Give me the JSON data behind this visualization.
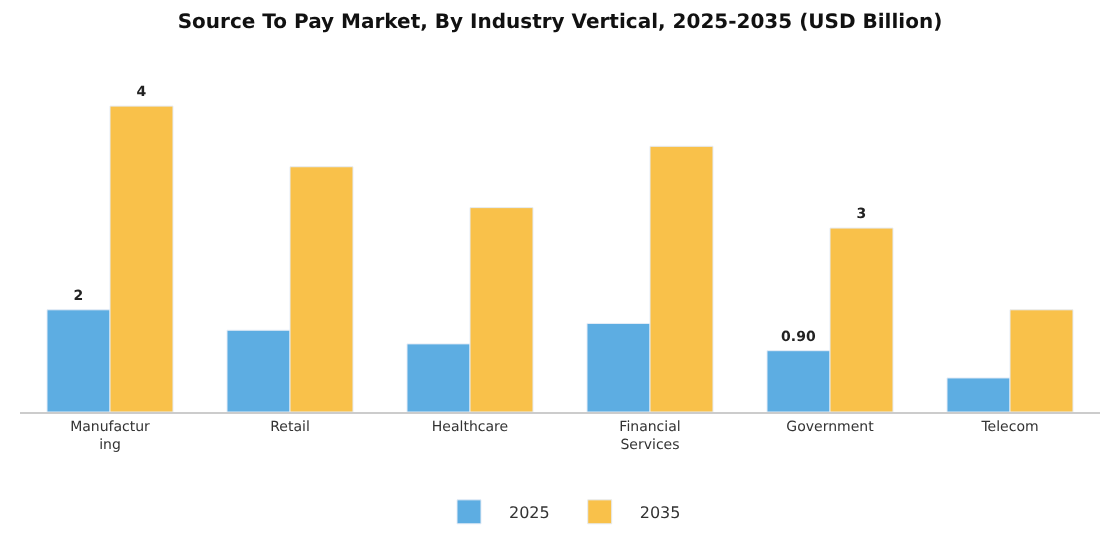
{
  "chart_data": {
    "type": "bar",
    "title": "Source To Pay Market, By Industry Vertical, 2025-2035 (USD Billion)",
    "categories": [
      "Manufacturing",
      "Retail",
      "Healthcare",
      "Financial Services",
      "Government",
      "Telecom"
    ],
    "series": [
      {
        "name": "2025",
        "color": "#5dade2",
        "values": [
          1.5,
          1.2,
          1.0,
          1.3,
          0.9,
          0.5
        ],
        "value_labels": [
          "2",
          null,
          null,
          null,
          "0.90",
          null
        ]
      },
      {
        "name": "2035",
        "color": "#f9c14a",
        "values": [
          4.49,
          3.6,
          3.0,
          3.9,
          2.7,
          1.5
        ],
        "value_labels": [
          "4",
          null,
          null,
          null,
          "3",
          null
        ]
      }
    ],
    "tick_labels": "x",
    "legend": "bottom"
  }
}
